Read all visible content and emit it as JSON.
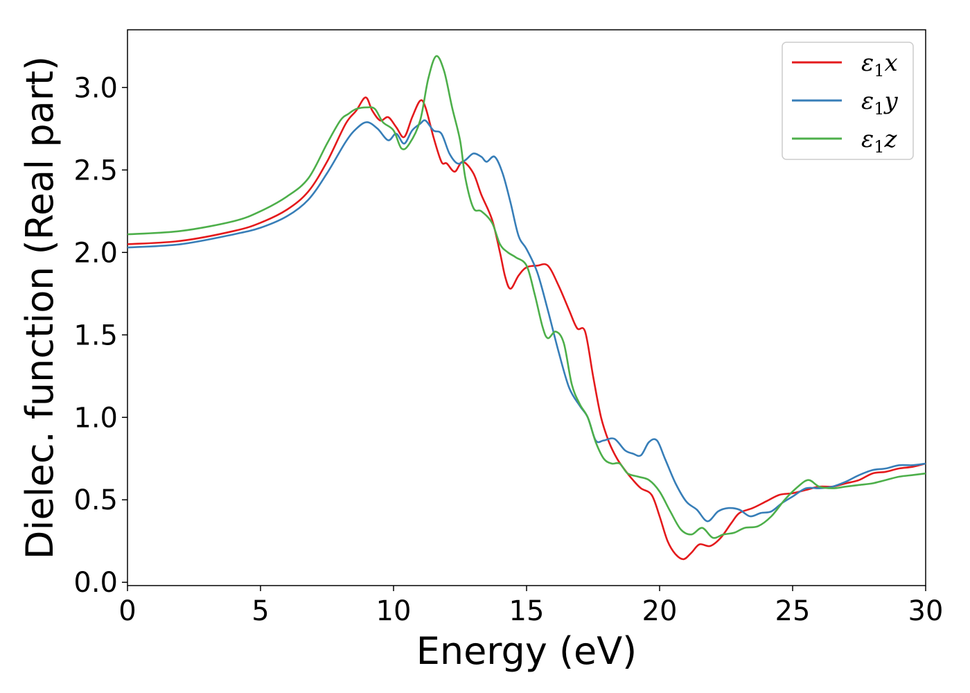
{
  "chart_data": {
    "type": "line",
    "title": "",
    "xlabel": "Energy (eV)",
    "ylabel": "Dielec. function (Real part)",
    "xlim": [
      0,
      30
    ],
    "ylim": [
      -0.02,
      3.35
    ],
    "xticks": [
      0,
      5,
      10,
      15,
      20,
      25,
      30
    ],
    "xtick_labels": [
      "0",
      "5",
      "10",
      "15",
      "20",
      "25",
      "30"
    ],
    "yticks": [
      0.0,
      0.5,
      1.0,
      1.5,
      2.0,
      2.5,
      3.0
    ],
    "ytick_labels": [
      "0.0",
      "0.5",
      "1.0",
      "1.5",
      "2.0",
      "2.5",
      "3.0"
    ],
    "grid": false,
    "legend_position": "top-right",
    "series": [
      {
        "name": "ε₁x",
        "legend_main": "ε",
        "legend_sub": "1",
        "legend_suffix": "x",
        "color": "#e41a1c",
        "points": [
          [
            0,
            2.05
          ],
          [
            2,
            2.07
          ],
          [
            4,
            2.13
          ],
          [
            5,
            2.18
          ],
          [
            6,
            2.26
          ],
          [
            6.8,
            2.37
          ],
          [
            7.5,
            2.55
          ],
          [
            8.2,
            2.78
          ],
          [
            8.6,
            2.86
          ],
          [
            8.95,
            2.94
          ],
          [
            9.2,
            2.86
          ],
          [
            9.5,
            2.8
          ],
          [
            9.8,
            2.82
          ],
          [
            10.1,
            2.76
          ],
          [
            10.4,
            2.7
          ],
          [
            10.7,
            2.82
          ],
          [
            11.0,
            2.92
          ],
          [
            11.2,
            2.88
          ],
          [
            11.5,
            2.7
          ],
          [
            11.8,
            2.55
          ],
          [
            12.0,
            2.54
          ],
          [
            12.3,
            2.49
          ],
          [
            12.6,
            2.55
          ],
          [
            13.0,
            2.48
          ],
          [
            13.3,
            2.35
          ],
          [
            13.7,
            2.2
          ],
          [
            14.0,
            2.0
          ],
          [
            14.2,
            1.85
          ],
          [
            14.4,
            1.78
          ],
          [
            14.7,
            1.86
          ],
          [
            15.0,
            1.91
          ],
          [
            15.4,
            1.92
          ],
          [
            15.8,
            1.92
          ],
          [
            16.2,
            1.8
          ],
          [
            16.6,
            1.65
          ],
          [
            16.9,
            1.54
          ],
          [
            17.2,
            1.52
          ],
          [
            17.5,
            1.25
          ],
          [
            17.8,
            1.0
          ],
          [
            18.1,
            0.85
          ],
          [
            18.4,
            0.75
          ],
          [
            18.7,
            0.68
          ],
          [
            19.0,
            0.62
          ],
          [
            19.3,
            0.57
          ],
          [
            19.7,
            0.53
          ],
          [
            20.0,
            0.4
          ],
          [
            20.3,
            0.25
          ],
          [
            20.6,
            0.17
          ],
          [
            20.9,
            0.14
          ],
          [
            21.2,
            0.18
          ],
          [
            21.5,
            0.23
          ],
          [
            21.9,
            0.22
          ],
          [
            22.3,
            0.27
          ],
          [
            22.7,
            0.36
          ],
          [
            23.0,
            0.42
          ],
          [
            23.5,
            0.45
          ],
          [
            24.0,
            0.49
          ],
          [
            24.5,
            0.53
          ],
          [
            25.0,
            0.54
          ],
          [
            25.5,
            0.56
          ],
          [
            26.0,
            0.58
          ],
          [
            26.5,
            0.58
          ],
          [
            27.0,
            0.6
          ],
          [
            27.5,
            0.62
          ],
          [
            28.0,
            0.66
          ],
          [
            28.5,
            0.67
          ],
          [
            29.0,
            0.69
          ],
          [
            29.5,
            0.7
          ],
          [
            30.0,
            0.72
          ]
        ]
      },
      {
        "name": "ε₁y",
        "legend_main": "ε",
        "legend_sub": "1",
        "legend_suffix": "y",
        "color": "#377eb8",
        "points": [
          [
            0,
            2.03
          ],
          [
            2,
            2.05
          ],
          [
            4,
            2.11
          ],
          [
            5,
            2.15
          ],
          [
            6,
            2.22
          ],
          [
            6.8,
            2.32
          ],
          [
            7.5,
            2.48
          ],
          [
            8.2,
            2.67
          ],
          [
            8.6,
            2.75
          ],
          [
            9.0,
            2.79
          ],
          [
            9.4,
            2.75
          ],
          [
            9.8,
            2.68
          ],
          [
            10.1,
            2.72
          ],
          [
            10.4,
            2.66
          ],
          [
            10.7,
            2.74
          ],
          [
            11.0,
            2.78
          ],
          [
            11.2,
            2.8
          ],
          [
            11.5,
            2.74
          ],
          [
            11.8,
            2.72
          ],
          [
            12.1,
            2.6
          ],
          [
            12.4,
            2.54
          ],
          [
            12.7,
            2.56
          ],
          [
            13.0,
            2.6
          ],
          [
            13.3,
            2.58
          ],
          [
            13.5,
            2.55
          ],
          [
            13.8,
            2.58
          ],
          [
            14.1,
            2.48
          ],
          [
            14.4,
            2.3
          ],
          [
            14.7,
            2.1
          ],
          [
            15.0,
            2.02
          ],
          [
            15.4,
            1.88
          ],
          [
            15.8,
            1.65
          ],
          [
            16.2,
            1.4
          ],
          [
            16.6,
            1.18
          ],
          [
            17.0,
            1.07
          ],
          [
            17.3,
            1.0
          ],
          [
            17.6,
            0.86
          ],
          [
            17.9,
            0.86
          ],
          [
            18.3,
            0.87
          ],
          [
            18.7,
            0.8
          ],
          [
            19.0,
            0.78
          ],
          [
            19.3,
            0.77
          ],
          [
            19.6,
            0.85
          ],
          [
            19.9,
            0.86
          ],
          [
            20.2,
            0.75
          ],
          [
            20.6,
            0.6
          ],
          [
            21.0,
            0.49
          ],
          [
            21.4,
            0.44
          ],
          [
            21.8,
            0.37
          ],
          [
            22.2,
            0.43
          ],
          [
            22.6,
            0.45
          ],
          [
            23.0,
            0.44
          ],
          [
            23.4,
            0.4
          ],
          [
            23.8,
            0.42
          ],
          [
            24.2,
            0.43
          ],
          [
            24.6,
            0.48
          ],
          [
            25.0,
            0.52
          ],
          [
            25.5,
            0.57
          ],
          [
            26.0,
            0.57
          ],
          [
            26.5,
            0.58
          ],
          [
            27.0,
            0.61
          ],
          [
            27.5,
            0.65
          ],
          [
            28.0,
            0.68
          ],
          [
            28.5,
            0.69
          ],
          [
            29.0,
            0.71
          ],
          [
            29.5,
            0.71
          ],
          [
            30.0,
            0.72
          ]
        ]
      },
      {
        "name": "ε₁z",
        "legend_main": "ε",
        "legend_sub": "1",
        "legend_suffix": "z",
        "color": "#4daf4a",
        "points": [
          [
            0,
            2.11
          ],
          [
            2,
            2.13
          ],
          [
            4,
            2.19
          ],
          [
            5,
            2.25
          ],
          [
            6,
            2.34
          ],
          [
            6.8,
            2.45
          ],
          [
            7.5,
            2.66
          ],
          [
            8.0,
            2.8
          ],
          [
            8.3,
            2.84
          ],
          [
            8.6,
            2.87
          ],
          [
            9.0,
            2.88
          ],
          [
            9.3,
            2.87
          ],
          [
            9.6,
            2.79
          ],
          [
            10.0,
            2.74
          ],
          [
            10.3,
            2.63
          ],
          [
            10.6,
            2.66
          ],
          [
            11.0,
            2.8
          ],
          [
            11.3,
            3.05
          ],
          [
            11.6,
            3.19
          ],
          [
            11.9,
            3.1
          ],
          [
            12.2,
            2.88
          ],
          [
            12.5,
            2.68
          ],
          [
            12.7,
            2.45
          ],
          [
            13.0,
            2.27
          ],
          [
            13.3,
            2.25
          ],
          [
            13.7,
            2.18
          ],
          [
            14.0,
            2.05
          ],
          [
            14.3,
            2.0
          ],
          [
            14.6,
            1.97
          ],
          [
            15.0,
            1.92
          ],
          [
            15.3,
            1.75
          ],
          [
            15.6,
            1.55
          ],
          [
            15.8,
            1.48
          ],
          [
            16.1,
            1.52
          ],
          [
            16.4,
            1.45
          ],
          [
            16.7,
            1.2
          ],
          [
            17.0,
            1.08
          ],
          [
            17.3,
            1.0
          ],
          [
            17.6,
            0.85
          ],
          [
            17.9,
            0.75
          ],
          [
            18.2,
            0.72
          ],
          [
            18.5,
            0.72
          ],
          [
            18.8,
            0.66
          ],
          [
            19.2,
            0.64
          ],
          [
            19.6,
            0.62
          ],
          [
            20.0,
            0.55
          ],
          [
            20.4,
            0.43
          ],
          [
            20.8,
            0.32
          ],
          [
            21.2,
            0.29
          ],
          [
            21.6,
            0.33
          ],
          [
            22.0,
            0.27
          ],
          [
            22.4,
            0.29
          ],
          [
            22.8,
            0.3
          ],
          [
            23.2,
            0.33
          ],
          [
            23.7,
            0.34
          ],
          [
            24.2,
            0.4
          ],
          [
            24.7,
            0.5
          ],
          [
            25.2,
            0.58
          ],
          [
            25.6,
            0.62
          ],
          [
            26.0,
            0.58
          ],
          [
            26.5,
            0.57
          ],
          [
            27.0,
            0.58
          ],
          [
            27.5,
            0.59
          ],
          [
            28.0,
            0.6
          ],
          [
            28.5,
            0.62
          ],
          [
            29.0,
            0.64
          ],
          [
            29.5,
            0.65
          ],
          [
            30.0,
            0.66
          ]
        ]
      }
    ]
  }
}
